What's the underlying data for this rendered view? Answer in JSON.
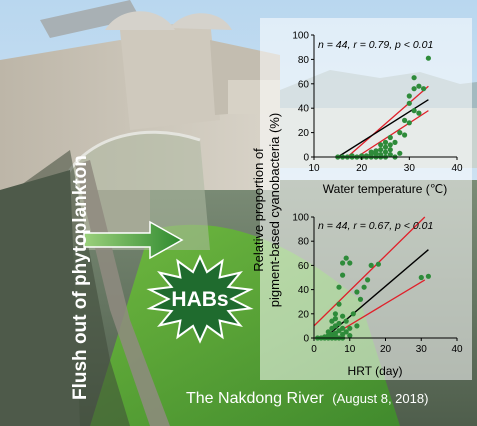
{
  "figure": {
    "side_caption": "Flush out of phytoplankton",
    "badge_label": "HABs",
    "location_caption": "The Nakdong River",
    "date_caption": "(August 8, 2018)",
    "shared_ylabel_line1": "Relative proportion of",
    "shared_ylabel_line2": "pigment-based cyanobacteria (%)",
    "colors": {
      "point": "#2e8b3a",
      "fit_line": "#000000",
      "ci_line": "#e0202a",
      "badge_fill": "#1f6b2e",
      "arrow_fill": "#3f9a3a"
    }
  },
  "chart_data": [
    {
      "type": "scatter",
      "stats": "n = 44, r = 0.79, p < 0.01",
      "xlabel": "Water temperature (℃)",
      "ylabel": "Relative proportion of pigment-based cyanobacteria (%)",
      "xlim": [
        10,
        40
      ],
      "ylim": [
        0,
        100
      ],
      "xticks": [
        "10",
        "20",
        "30",
        "40"
      ],
      "yticks": [
        "0",
        "20",
        "40",
        "60",
        "80",
        "100"
      ],
      "points": [
        [
          15,
          0
        ],
        [
          16,
          0
        ],
        [
          17,
          0
        ],
        [
          18,
          0
        ],
        [
          18,
          1
        ],
        [
          19,
          0
        ],
        [
          20,
          0
        ],
        [
          20,
          1
        ],
        [
          21,
          0
        ],
        [
          21,
          1
        ],
        [
          22,
          0
        ],
        [
          22,
          2
        ],
        [
          22,
          4
        ],
        [
          23,
          0
        ],
        [
          23,
          3
        ],
        [
          23,
          5
        ],
        [
          24,
          0
        ],
        [
          24,
          2
        ],
        [
          24,
          6
        ],
        [
          24,
          10
        ],
        [
          25,
          0
        ],
        [
          25,
          4
        ],
        [
          25,
          8
        ],
        [
          25,
          12
        ],
        [
          26,
          2
        ],
        [
          26,
          6
        ],
        [
          26,
          10
        ],
        [
          26,
          16
        ],
        [
          27,
          0
        ],
        [
          27,
          12
        ],
        [
          28,
          3
        ],
        [
          28,
          20
        ],
        [
          29,
          18
        ],
        [
          29,
          30
        ],
        [
          30,
          28
        ],
        [
          30,
          44
        ],
        [
          30,
          50
        ],
        [
          31,
          38
        ],
        [
          31,
          56
        ],
        [
          31,
          65
        ],
        [
          32,
          36
        ],
        [
          32,
          58
        ],
        [
          33,
          56
        ],
        [
          34,
          81
        ]
      ],
      "fit": [
        [
          15,
          0
        ],
        [
          34,
          47
        ]
      ],
      "ci_upper": [
        [
          17,
          0
        ],
        [
          34,
          58
        ]
      ],
      "ci_lower": [
        [
          19,
          0
        ],
        [
          34,
          38
        ]
      ]
    },
    {
      "type": "scatter",
      "stats": "n = 44, r = 0.67, p < 0.01",
      "xlabel": "HRT (day)",
      "ylabel": "Relative proportion of pigment-based cyanobacteria (%)",
      "xlim": [
        0,
        40
      ],
      "ylim": [
        0,
        100
      ],
      "xticks": [
        "0",
        "10",
        "20",
        "30",
        "40"
      ],
      "yticks": [
        "0",
        "20",
        "40",
        "60",
        "80",
        "100"
      ],
      "points": [
        [
          1,
          0
        ],
        [
          2,
          0
        ],
        [
          3,
          0
        ],
        [
          3,
          1
        ],
        [
          4,
          0
        ],
        [
          4,
          2
        ],
        [
          4,
          5
        ],
        [
          5,
          0
        ],
        [
          5,
          3
        ],
        [
          5,
          8
        ],
        [
          5,
          14
        ],
        [
          6,
          0
        ],
        [
          6,
          2
        ],
        [
          6,
          4
        ],
        [
          6,
          10
        ],
        [
          6,
          16
        ],
        [
          6,
          20
        ],
        [
          7,
          0
        ],
        [
          7,
          6
        ],
        [
          7,
          12
        ],
        [
          7,
          28
        ],
        [
          7,
          42
        ],
        [
          8,
          0
        ],
        [
          8,
          3
        ],
        [
          8,
          8
        ],
        [
          8,
          18
        ],
        [
          8,
          52
        ],
        [
          8,
          62
        ],
        [
          9,
          5
        ],
        [
          9,
          14
        ],
        [
          9,
          66
        ],
        [
          10,
          2
        ],
        [
          10,
          8
        ],
        [
          10,
          62
        ],
        [
          11,
          20
        ],
        [
          12,
          10
        ],
        [
          12,
          38
        ],
        [
          13,
          32
        ],
        [
          14,
          42
        ],
        [
          15,
          48
        ],
        [
          16,
          60
        ],
        [
          18,
          61
        ],
        [
          30,
          50
        ],
        [
          32,
          51
        ]
      ],
      "fit": [
        [
          3,
          0
        ],
        [
          32,
          73
        ]
      ],
      "ci_upper": [
        [
          0,
          10
        ],
        [
          31,
          100
        ]
      ],
      "ci_lower": [
        [
          4,
          0
        ],
        [
          31,
          48
        ]
      ]
    }
  ]
}
